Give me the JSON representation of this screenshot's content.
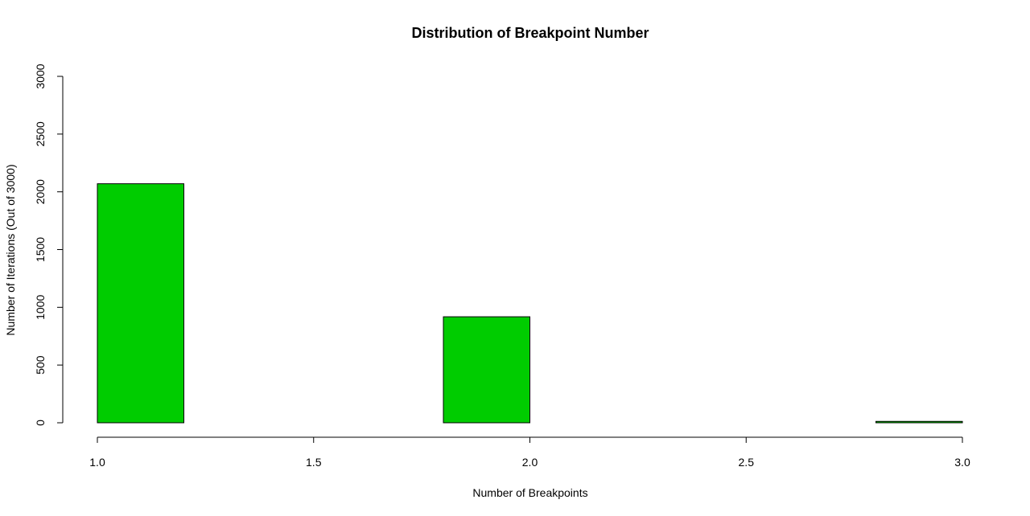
{
  "chart_data": {
    "type": "bar",
    "title": "Distribution of Breakpoint Number",
    "xlabel": "Number of Breakpoints",
    "ylabel": "Number of Iterations (Out of 3000)",
    "xlim": [
      1.0,
      3.0
    ],
    "ylim": [
      0,
      3000
    ],
    "x_ticks": [
      "1.0",
      "1.5",
      "2.0",
      "2.5",
      "3.0"
    ],
    "y_ticks": [
      "0",
      "500",
      "1000",
      "1500",
      "2000",
      "2500",
      "3000"
    ],
    "bins": [
      {
        "start": 1.0,
        "end": 1.2,
        "value": 2070
      },
      {
        "start": 1.2,
        "end": 1.4,
        "value": 0
      },
      {
        "start": 1.4,
        "end": 1.6,
        "value": 0
      },
      {
        "start": 1.6,
        "end": 1.8,
        "value": 0
      },
      {
        "start": 1.8,
        "end": 2.0,
        "value": 918
      },
      {
        "start": 2.0,
        "end": 2.2,
        "value": 0
      },
      {
        "start": 2.2,
        "end": 2.4,
        "value": 0
      },
      {
        "start": 2.4,
        "end": 2.6,
        "value": 0
      },
      {
        "start": 2.6,
        "end": 2.8,
        "value": 0
      },
      {
        "start": 2.8,
        "end": 3.0,
        "value": 12
      }
    ],
    "grid": false,
    "legend": "none",
    "colors": {
      "bar_fill": "#00cc00",
      "bar_stroke": "#000000",
      "axis": "#000000",
      "background": "#ffffff"
    }
  }
}
